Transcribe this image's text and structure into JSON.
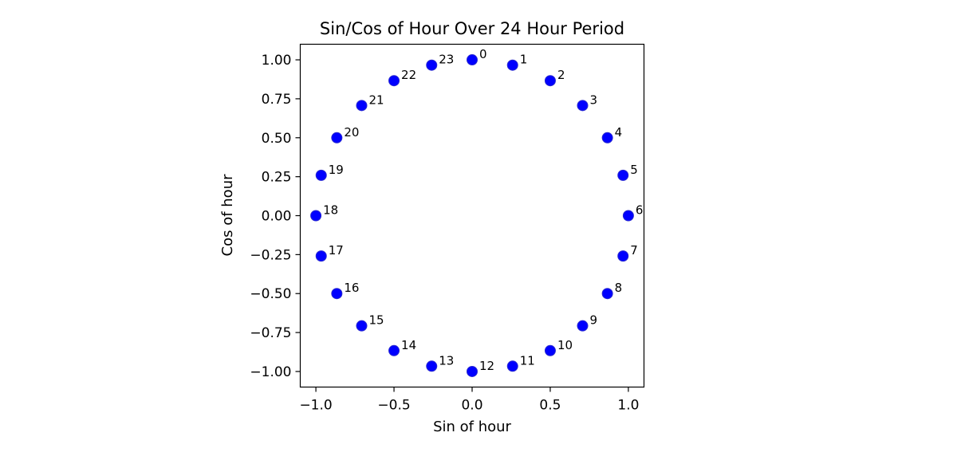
{
  "chart_data": {
    "type": "scatter",
    "title": "Sin/Cos of Hour Over 24 Hour Period",
    "xlabel": "Sin of hour",
    "ylabel": "Cos of hour",
    "xlim": [
      -1.1,
      1.1
    ],
    "ylim": [
      -1.1,
      1.1
    ],
    "x_ticks": [
      -1.0,
      -0.5,
      0.0,
      0.5,
      1.0
    ],
    "x_tick_labels": [
      "−1.0",
      "−0.5",
      "0.0",
      "0.5",
      "1.0"
    ],
    "y_ticks": [
      1.0,
      0.75,
      0.5,
      0.25,
      0.0,
      -0.25,
      -0.5,
      -0.75,
      -1.0
    ],
    "y_tick_labels": [
      "1.00",
      "0.75",
      "0.50",
      "0.25",
      "0.00",
      "−0.25",
      "−0.50",
      "−0.75",
      "−1.00"
    ],
    "grid": false,
    "marker_color": "#0000ff",
    "marker_edge_color": "#2a2ad0",
    "points": [
      {
        "label": "0",
        "x": 0.0,
        "y": 1.0
      },
      {
        "label": "1",
        "x": 0.259,
        "y": 0.966
      },
      {
        "label": "2",
        "x": 0.5,
        "y": 0.866
      },
      {
        "label": "3",
        "x": 0.707,
        "y": 0.707
      },
      {
        "label": "4",
        "x": 0.866,
        "y": 0.5
      },
      {
        "label": "5",
        "x": 0.966,
        "y": 0.259
      },
      {
        "label": "6",
        "x": 1.0,
        "y": 0.0
      },
      {
        "label": "7",
        "x": 0.966,
        "y": -0.259
      },
      {
        "label": "8",
        "x": 0.866,
        "y": -0.5
      },
      {
        "label": "9",
        "x": 0.707,
        "y": -0.707
      },
      {
        "label": "10",
        "x": 0.5,
        "y": -0.866
      },
      {
        "label": "11",
        "x": 0.259,
        "y": -0.966
      },
      {
        "label": "12",
        "x": 0.0,
        "y": -1.0
      },
      {
        "label": "13",
        "x": -0.259,
        "y": -0.966
      },
      {
        "label": "14",
        "x": -0.5,
        "y": -0.866
      },
      {
        "label": "15",
        "x": -0.707,
        "y": -0.707
      },
      {
        "label": "16",
        "x": -0.866,
        "y": -0.5
      },
      {
        "label": "17",
        "x": -0.966,
        "y": -0.259
      },
      {
        "label": "18",
        "x": -1.0,
        "y": 0.0
      },
      {
        "label": "19",
        "x": -0.966,
        "y": 0.259
      },
      {
        "label": "20",
        "x": -0.866,
        "y": 0.5
      },
      {
        "label": "21",
        "x": -0.707,
        "y": 0.707
      },
      {
        "label": "22",
        "x": -0.5,
        "y": 0.866
      },
      {
        "label": "23",
        "x": -0.259,
        "y": 0.966
      }
    ]
  }
}
